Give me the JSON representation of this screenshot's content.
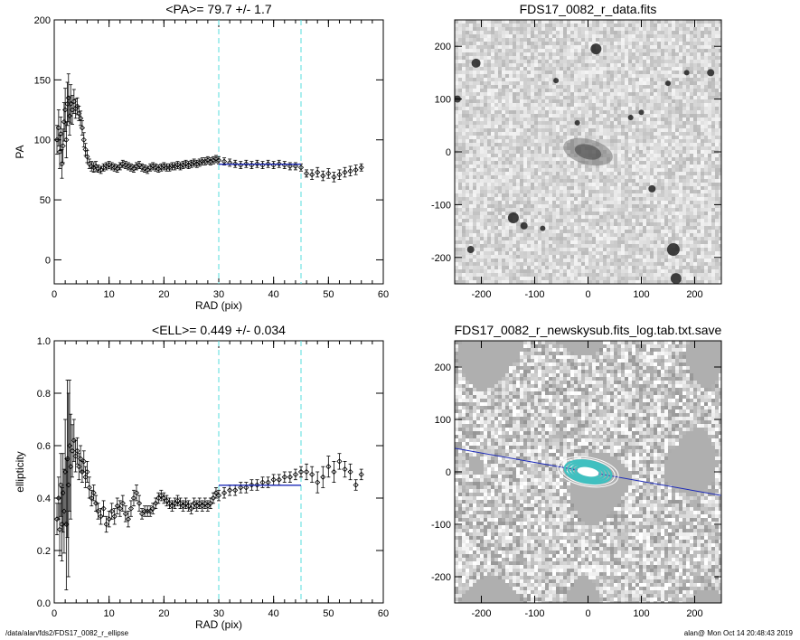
{
  "footer": {
    "left": "/data/alan/fds2/FDS17_0082_r_ellipse",
    "right": "alan@  Mon Oct 14 20:48:43 2019"
  },
  "chart_data": [
    {
      "type": "scatter",
      "title": "<PA>=  79.7 +/-   1.7",
      "xlabel": "RAD (pix)",
      "ylabel": "PA",
      "xlim": [
        0,
        60
      ],
      "ylim": [
        -20,
        200
      ],
      "xticks": [
        0,
        10,
        20,
        30,
        40,
        50,
        60
      ],
      "yticks": [
        0,
        50,
        100,
        150,
        200
      ],
      "vlines": [
        30,
        45
      ],
      "fit_line": {
        "x": [
          30,
          45
        ],
        "y": 79.7
      },
      "series": [
        {
          "marker": "diamond",
          "points": [
            [
              0.5,
              100,
              12
            ],
            [
              0.8,
              110,
              15
            ],
            [
              1.0,
              90,
              14
            ],
            [
              1.2,
              105,
              14
            ],
            [
              1.4,
              80,
              12
            ],
            [
              1.6,
              95,
              14
            ],
            [
              1.8,
              115,
              16
            ],
            [
              2.0,
              125,
              18
            ],
            [
              2.2,
              100,
              15
            ],
            [
              2.4,
              130,
              18
            ],
            [
              2.6,
              135,
              20
            ],
            [
              2.8,
              120,
              16
            ],
            [
              3.0,
              130,
              16
            ],
            [
              3.3,
              125,
              12
            ],
            [
              3.6,
              132,
              10
            ],
            [
              3.9,
              126,
              8
            ],
            [
              4.2,
              128,
              7
            ],
            [
              4.5,
              122,
              6
            ],
            [
              4.8,
              118,
              6
            ],
            [
              5.1,
              110,
              6
            ],
            [
              5.4,
              100,
              6
            ],
            [
              5.7,
              92,
              5
            ],
            [
              6.0,
              86,
              5
            ],
            [
              6.4,
              80,
              4
            ],
            [
              6.8,
              78,
              4
            ],
            [
              7.2,
              77,
              4
            ],
            [
              7.6,
              78,
              4
            ],
            [
              8.0,
              76,
              3
            ],
            [
              8.5,
              75,
              3
            ],
            [
              9.0,
              77,
              3
            ],
            [
              9.5,
              78,
              3
            ],
            [
              10.0,
              79,
              3
            ],
            [
              10.5,
              78,
              3
            ],
            [
              11,
              77,
              3
            ],
            [
              11.5,
              76,
              3
            ],
            [
              12,
              78,
              3
            ],
            [
              12.5,
              80,
              3
            ],
            [
              13,
              79,
              3
            ],
            [
              13.5,
              78,
              3
            ],
            [
              14,
              77,
              3
            ],
            [
              14.5,
              76,
              3
            ],
            [
              15,
              78,
              3
            ],
            [
              15.5,
              79,
              3
            ],
            [
              16,
              77,
              3
            ],
            [
              16.5,
              76,
              3
            ],
            [
              17,
              75,
              3
            ],
            [
              17.5,
              77,
              3
            ],
            [
              18,
              78,
              3
            ],
            [
              18.5,
              77,
              3
            ],
            [
              19,
              76,
              3
            ],
            [
              19.5,
              77,
              3
            ],
            [
              20,
              78,
              3
            ],
            [
              20.5,
              77,
              3
            ],
            [
              21,
              77,
              3
            ],
            [
              21.5,
              78,
              3
            ],
            [
              22,
              78,
              3
            ],
            [
              22.5,
              79,
              3
            ],
            [
              23,
              78,
              3
            ],
            [
              23.5,
              79,
              3
            ],
            [
              24,
              80,
              3
            ],
            [
              24.5,
              79,
              3
            ],
            [
              25,
              80,
              3
            ],
            [
              25.5,
              81,
              3
            ],
            [
              26,
              80,
              3
            ],
            [
              26.5,
              81,
              3
            ],
            [
              27,
              82,
              3
            ],
            [
              27.5,
              82,
              3
            ],
            [
              28,
              83,
              3
            ],
            [
              28.5,
              82,
              3
            ],
            [
              29,
              83,
              3
            ],
            [
              29.5,
              84,
              3
            ],
            [
              30,
              83,
              3
            ],
            [
              31,
              82,
              3
            ],
            [
              32,
              81,
              3
            ],
            [
              33,
              80,
              3
            ],
            [
              34,
              79,
              3
            ],
            [
              35,
              80,
              3
            ],
            [
              36,
              79,
              3
            ],
            [
              37,
              80,
              3
            ],
            [
              38,
              79,
              3
            ],
            [
              39,
              80,
              3
            ],
            [
              40,
              79,
              3
            ],
            [
              41,
              80,
              3
            ],
            [
              42,
              79,
              3
            ],
            [
              43,
              78,
              3
            ],
            [
              44,
              78,
              3
            ],
            [
              45,
              77,
              3
            ],
            [
              46,
              72,
              3
            ],
            [
              47,
              71,
              4
            ],
            [
              48,
              73,
              4
            ],
            [
              49,
              70,
              4
            ],
            [
              50,
              72,
              4
            ],
            [
              51,
              69,
              4
            ],
            [
              52,
              71,
              4
            ],
            [
              53,
              73,
              4
            ],
            [
              54,
              74,
              4
            ],
            [
              55,
              75,
              4
            ],
            [
              56,
              77,
              3
            ]
          ]
        }
      ]
    },
    {
      "type": "heatmap",
      "title": "FDS17_0082_r_data.fits",
      "xlim": [
        -250,
        250
      ],
      "ylim": [
        -250,
        250
      ],
      "xticks": [
        -200,
        -100,
        0,
        100,
        200
      ],
      "yticks": [
        -200,
        -100,
        0,
        100,
        200
      ]
    },
    {
      "type": "scatter",
      "title": "<ELL>= 0.449 +/-  0.034",
      "xlabel": "RAD (pix)",
      "ylabel": "ellipticity",
      "xlim": [
        0,
        60
      ],
      "ylim": [
        0,
        1
      ],
      "xticks": [
        0,
        10,
        20,
        30,
        40,
        50,
        60
      ],
      "yticks": [
        0.0,
        0.2,
        0.4,
        0.6,
        0.8,
        1.0
      ],
      "vlines": [
        30,
        45
      ],
      "fit_line": {
        "x": [
          30,
          45
        ],
        "y": 0.449
      },
      "series": [
        {
          "marker": "diamond",
          "points": [
            [
              0.5,
              0.32,
              0.06
            ],
            [
              0.8,
              0.4,
              0.08
            ],
            [
              1.0,
              0.28,
              0.1
            ],
            [
              1.2,
              0.45,
              0.12
            ],
            [
              1.4,
              0.3,
              0.14
            ],
            [
              1.6,
              0.42,
              0.15
            ],
            [
              1.8,
              0.35,
              0.16
            ],
            [
              2.0,
              0.5,
              0.2
            ],
            [
              2.2,
              0.3,
              0.25
            ],
            [
              2.4,
              0.55,
              0.3
            ],
            [
              2.6,
              0.45,
              0.35
            ],
            [
              2.8,
              0.6,
              0.25
            ],
            [
              3.0,
              0.52,
              0.2
            ],
            [
              3.3,
              0.58,
              0.1
            ],
            [
              3.6,
              0.62,
              0.08
            ],
            [
              3.9,
              0.56,
              0.06
            ],
            [
              4.2,
              0.58,
              0.05
            ],
            [
              4.5,
              0.52,
              0.05
            ],
            [
              4.8,
              0.55,
              0.05
            ],
            [
              5.1,
              0.5,
              0.04
            ],
            [
              5.4,
              0.54,
              0.04
            ],
            [
              5.7,
              0.48,
              0.04
            ],
            [
              6.0,
              0.5,
              0.04
            ],
            [
              6.4,
              0.44,
              0.04
            ],
            [
              6.8,
              0.4,
              0.03
            ],
            [
              7.2,
              0.42,
              0.03
            ],
            [
              7.6,
              0.38,
              0.03
            ],
            [
              8.0,
              0.35,
              0.03
            ],
            [
              8.5,
              0.33,
              0.03
            ],
            [
              9.0,
              0.36,
              0.03
            ],
            [
              9.5,
              0.3,
              0.03
            ],
            [
              10.0,
              0.32,
              0.03
            ],
            [
              10.5,
              0.35,
              0.03
            ],
            [
              11,
              0.33,
              0.03
            ],
            [
              11.5,
              0.37,
              0.03
            ],
            [
              12,
              0.36,
              0.03
            ],
            [
              12.5,
              0.38,
              0.03
            ],
            [
              13,
              0.34,
              0.03
            ],
            [
              13.5,
              0.32,
              0.03
            ],
            [
              14,
              0.36,
              0.03
            ],
            [
              14.5,
              0.4,
              0.03
            ],
            [
              15,
              0.42,
              0.03
            ],
            [
              15.5,
              0.38,
              0.03
            ],
            [
              16,
              0.34,
              0.02
            ],
            [
              16.5,
              0.35,
              0.02
            ],
            [
              17,
              0.35,
              0.02
            ],
            [
              17.5,
              0.35,
              0.02
            ],
            [
              18,
              0.36,
              0.02
            ],
            [
              18.5,
              0.38,
              0.02
            ],
            [
              19,
              0.4,
              0.02
            ],
            [
              19.5,
              0.41,
              0.02
            ],
            [
              20,
              0.4,
              0.02
            ],
            [
              20.5,
              0.39,
              0.02
            ],
            [
              21,
              0.38,
              0.02
            ],
            [
              21.5,
              0.37,
              0.02
            ],
            [
              22,
              0.38,
              0.02
            ],
            [
              22.5,
              0.39,
              0.02
            ],
            [
              23,
              0.38,
              0.02
            ],
            [
              23.5,
              0.37,
              0.02
            ],
            [
              24,
              0.38,
              0.02
            ],
            [
              24.5,
              0.37,
              0.02
            ],
            [
              25,
              0.36,
              0.02
            ],
            [
              25.5,
              0.38,
              0.02
            ],
            [
              26,
              0.37,
              0.02
            ],
            [
              26.5,
              0.38,
              0.02
            ],
            [
              27,
              0.37,
              0.02
            ],
            [
              27.5,
              0.38,
              0.02
            ],
            [
              28,
              0.37,
              0.02
            ],
            [
              28.5,
              0.38,
              0.02
            ],
            [
              29,
              0.4,
              0.02
            ],
            [
              29.5,
              0.42,
              0.02
            ],
            [
              30,
              0.41,
              0.02
            ],
            [
              31,
              0.42,
              0.02
            ],
            [
              32,
              0.43,
              0.02
            ],
            [
              33,
              0.43,
              0.02
            ],
            [
              34,
              0.44,
              0.02
            ],
            [
              35,
              0.44,
              0.02
            ],
            [
              36,
              0.45,
              0.02
            ],
            [
              37,
              0.45,
              0.02
            ],
            [
              38,
              0.46,
              0.02
            ],
            [
              39,
              0.46,
              0.02
            ],
            [
              40,
              0.47,
              0.02
            ],
            [
              41,
              0.47,
              0.02
            ],
            [
              42,
              0.48,
              0.02
            ],
            [
              43,
              0.48,
              0.02
            ],
            [
              44,
              0.49,
              0.02
            ],
            [
              45,
              0.5,
              0.02
            ],
            [
              46,
              0.5,
              0.03
            ],
            [
              47,
              0.49,
              0.03
            ],
            [
              48,
              0.46,
              0.04
            ],
            [
              49,
              0.48,
              0.04
            ],
            [
              50,
              0.52,
              0.04
            ],
            [
              51,
              0.5,
              0.04
            ],
            [
              52,
              0.54,
              0.03
            ],
            [
              53,
              0.51,
              0.03
            ],
            [
              54,
              0.5,
              0.03
            ],
            [
              55,
              0.45,
              0.02
            ],
            [
              56,
              0.49,
              0.02
            ]
          ]
        }
      ]
    },
    {
      "type": "heatmap",
      "title": "FDS17_0082_r_newskysub.fits_log.tab.txt.save",
      "xlim": [
        -250,
        250
      ],
      "ylim": [
        -250,
        250
      ],
      "xticks": [
        -200,
        -100,
        0,
        100,
        200
      ],
      "yticks": [
        -200,
        -100,
        0,
        100,
        200
      ]
    }
  ],
  "colors": {
    "vline": "#55dddd",
    "fit": "#1c2ab8",
    "ellipse": "#40c0c0"
  }
}
